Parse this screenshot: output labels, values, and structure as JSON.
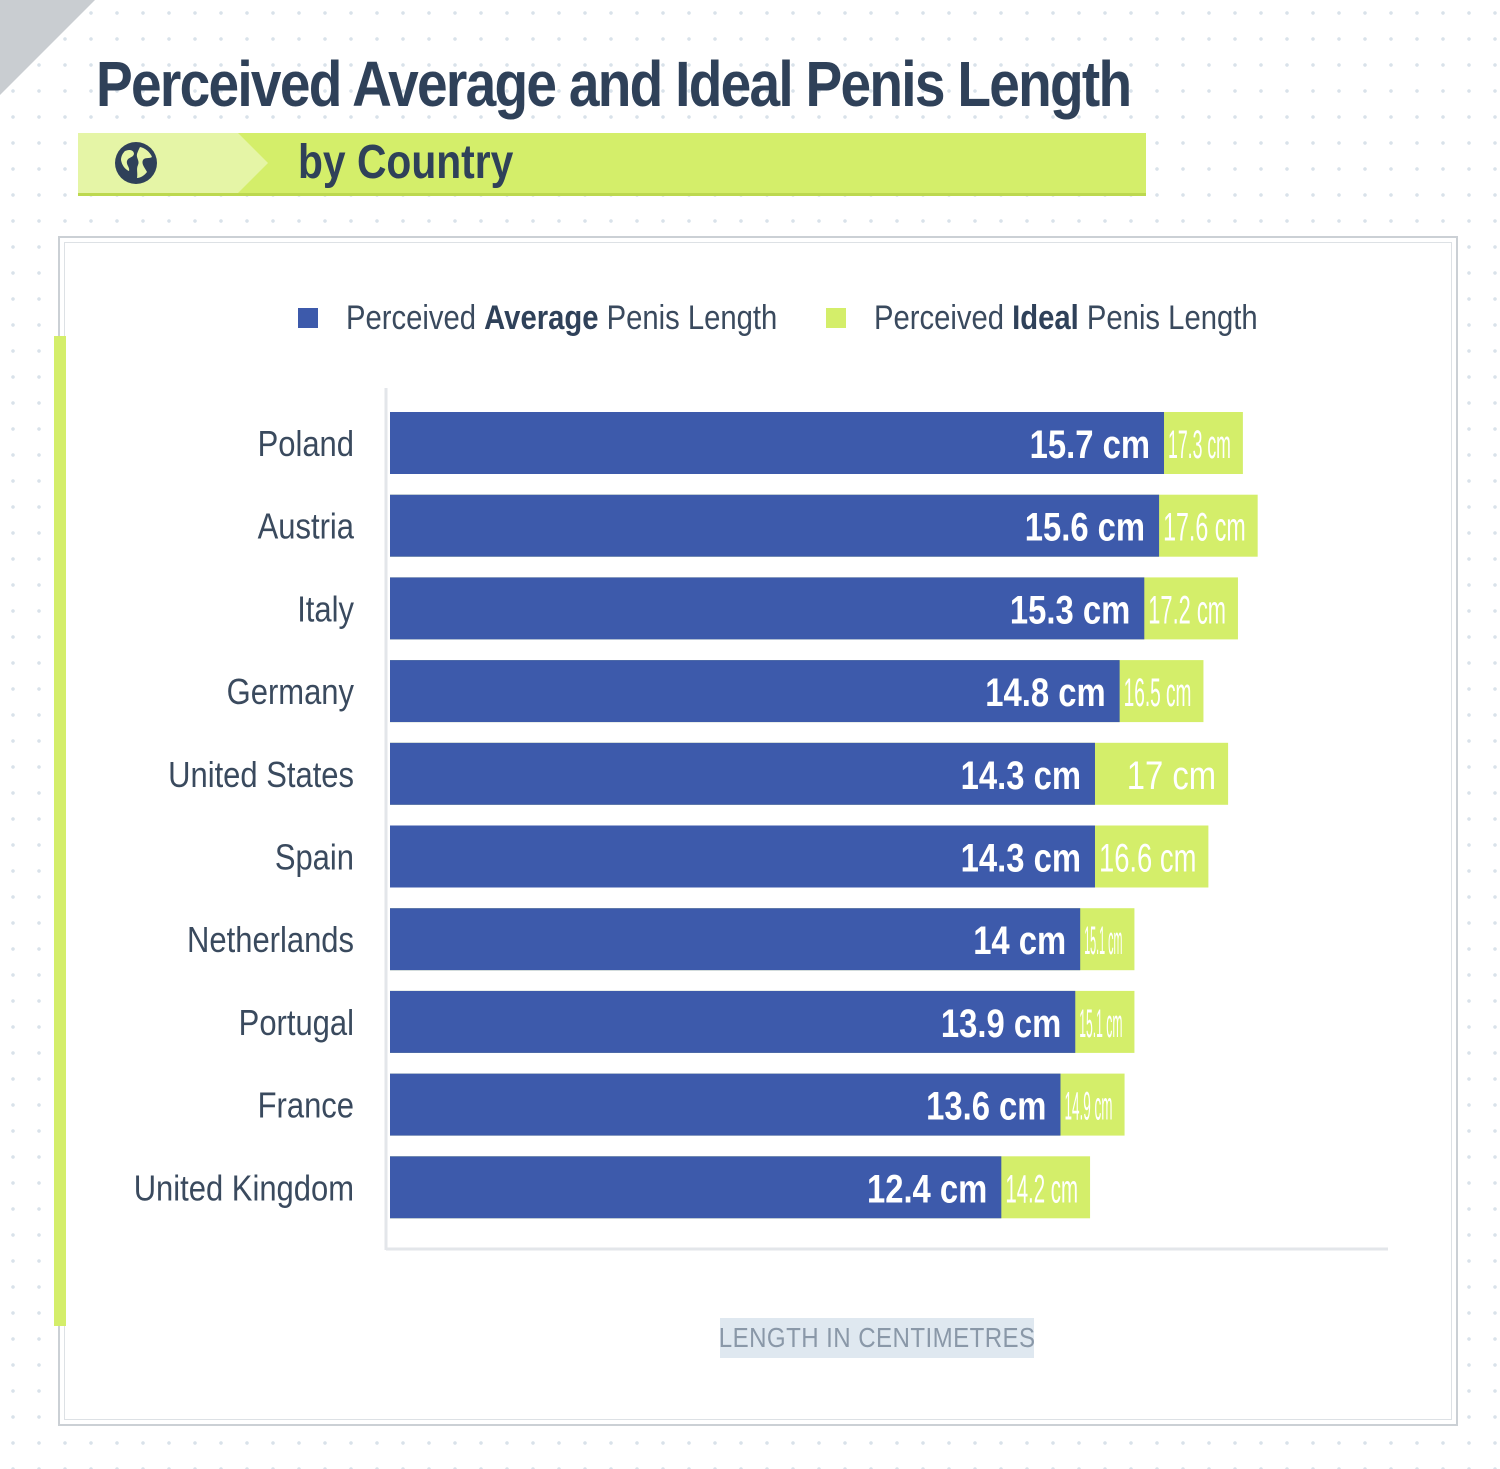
{
  "header": {
    "title": "Perceived Average and Ideal Penis Length",
    "subtitle": "by Country"
  },
  "legend": [
    {
      "pre": "Perceived ",
      "bold": "Average",
      "post": " Penis Length",
      "color": "#3d5aab"
    },
    {
      "pre": "Perceived ",
      "bold": "Ideal",
      "post": " Penis Length",
      "color": "#d4ee6a"
    }
  ],
  "colors": {
    "average": "#3d5aab",
    "ideal": "#d4ee6a",
    "accent": "#d4ee6a",
    "title": "#2f4159"
  },
  "icons": {
    "subtitle": "globe-icon"
  },
  "chart_data": {
    "type": "bar",
    "orientation": "horizontal",
    "stacked": "overlay",
    "title": "Perceived Average and Ideal Penis Length",
    "subtitle": "by Country",
    "xlabel": "LENGTH IN CENTIMETRES",
    "ylabel": "",
    "xlim": [
      0,
      18.5
    ],
    "grid": false,
    "legend_position": "top",
    "unit_suffix": " cm",
    "categories": [
      "Poland",
      "Austria",
      "Italy",
      "Germany",
      "United States",
      "Spain",
      "Netherlands",
      "Portugal",
      "France",
      "United Kingdom"
    ],
    "series": [
      {
        "name": "Perceived Average Penis Length",
        "values": [
          15.7,
          15.6,
          15.3,
          14.8,
          14.3,
          14.3,
          14,
          13.9,
          13.6,
          12.4
        ]
      },
      {
        "name": "Perceived Ideal Penis Length",
        "values": [
          17.3,
          17.6,
          17.2,
          16.5,
          17,
          16.6,
          15.1,
          15.1,
          14.9,
          14.2
        ]
      }
    ]
  }
}
